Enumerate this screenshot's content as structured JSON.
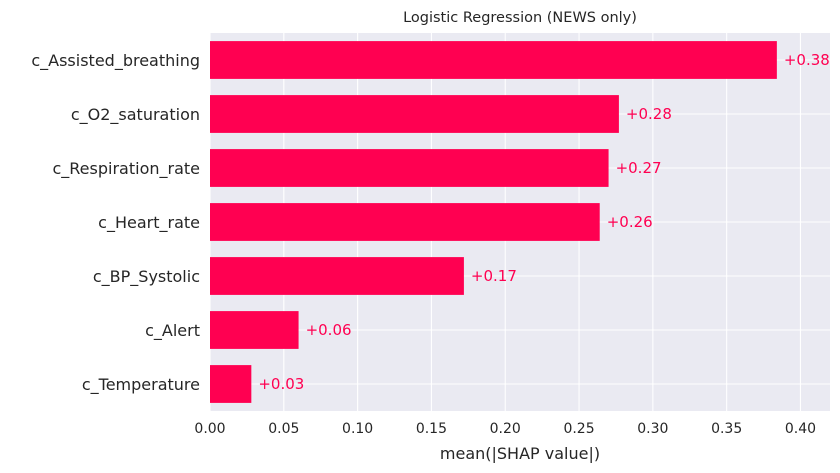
{
  "chart_data": {
    "type": "bar",
    "orientation": "horizontal",
    "title": "Logistic Regression (NEWS only)",
    "xlabel": "mean(|SHAP value|)",
    "ylabel": "",
    "xlim": [
      0,
      0.42
    ],
    "xticks": [
      "0.00",
      "0.05",
      "0.10",
      "0.15",
      "0.20",
      "0.25",
      "0.30",
      "0.35",
      "0.40"
    ],
    "grid": true,
    "bar_color": "#ff0051",
    "background_color": "#eaeaf2",
    "categories": [
      "c_Assisted_breathing",
      "c_O2_saturation",
      "c_Respiration_rate",
      "c_Heart_rate",
      "c_BP_Systolic",
      "c_Alert",
      "c_Temperature"
    ],
    "values": [
      0.384,
      0.277,
      0.27,
      0.264,
      0.172,
      0.06,
      0.028
    ],
    "data_labels": [
      "+0.38",
      "+0.28",
      "+0.27",
      "+0.26",
      "+0.17",
      "+0.06",
      "+0.03"
    ]
  }
}
